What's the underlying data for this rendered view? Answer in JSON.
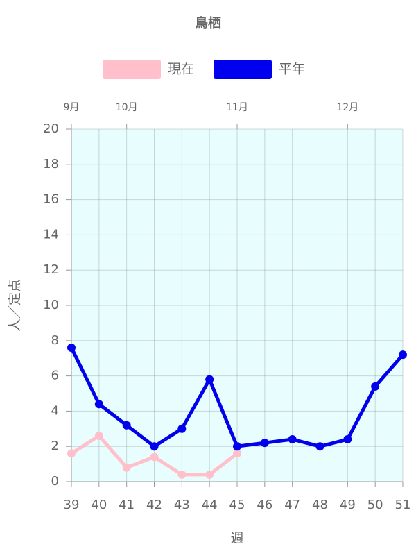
{
  "chart_data": {
    "type": "line",
    "title": "鳥栖",
    "x": [
      39,
      40,
      41,
      42,
      43,
      44,
      45,
      46,
      47,
      48,
      49,
      50,
      51
    ],
    "series": [
      {
        "name": "現在",
        "color": "#ffc0cb",
        "values": [
          1.6,
          2.6,
          0.8,
          1.4,
          0.4,
          0.4,
          1.6,
          null,
          null,
          null,
          null,
          null,
          null
        ]
      },
      {
        "name": "平年",
        "color": "#0000ee",
        "values": [
          7.6,
          4.4,
          3.2,
          2.0,
          3.0,
          5.8,
          2.0,
          2.2,
          2.4,
          2.0,
          2.4,
          5.4,
          7.2
        ]
      }
    ],
    "xlim": [
      39,
      51
    ],
    "xticks": [
      39,
      40,
      41,
      42,
      43,
      44,
      45,
      46,
      47,
      48,
      49,
      50,
      51
    ],
    "x2ticks": [
      {
        "value": 39,
        "label": "9月"
      },
      {
        "value": 41,
        "label": "10月"
      },
      {
        "value": 45,
        "label": "11月"
      },
      {
        "value": 49,
        "label": "12月"
      }
    ],
    "ylim": [
      0,
      20
    ],
    "yticks": [
      0,
      2,
      4,
      6,
      8,
      10,
      12,
      14,
      16,
      18,
      20
    ],
    "ylabel": "人／定点",
    "xlabel": "週",
    "grid": true,
    "legend": "top",
    "plot_background": "#e8fdfd"
  }
}
